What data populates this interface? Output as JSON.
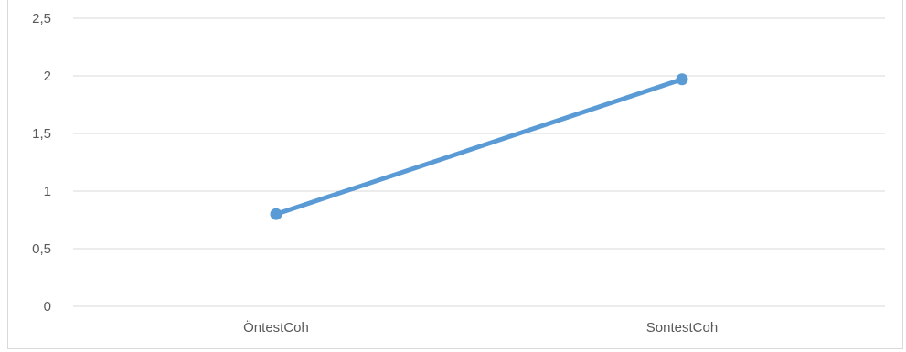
{
  "chart_data": {
    "type": "line",
    "categories": [
      "ÖntestCoh",
      "SontestCoh"
    ],
    "series": [
      {
        "values": [
          0.8,
          1.97
        ]
      }
    ],
    "ylim": [
      0,
      2.5
    ],
    "yticks": [
      0,
      0.5,
      1,
      1.5,
      2,
      2.5
    ],
    "ytick_labels": [
      "0",
      "0,5",
      "1",
      "1,5",
      "2",
      "2,5"
    ],
    "grid": true,
    "legend": "none",
    "colors": {
      "line": "#5b9bd5",
      "grid": "#d9d9d9",
      "text": "#595959"
    }
  }
}
